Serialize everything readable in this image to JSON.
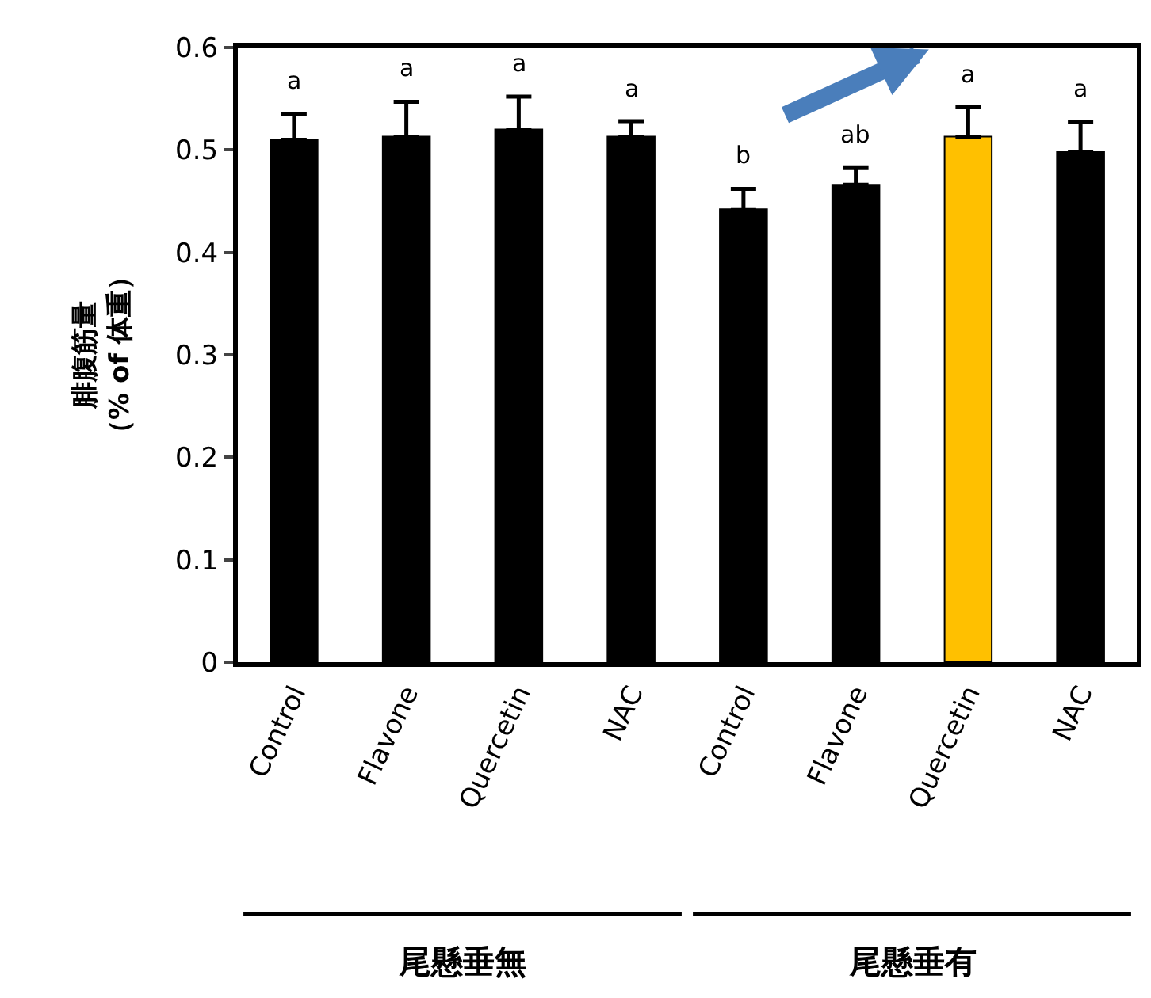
{
  "chart_data": {
    "type": "bar",
    "ylabel": "腓腹筋量（% of 体重）",
    "categories": [
      "Control",
      "Flavone",
      "Quercetin",
      "NAC",
      "Control",
      "Flavone",
      "Quercetin",
      "NAC"
    ],
    "values": [
      0.51,
      0.513,
      0.52,
      0.513,
      0.442,
      0.466,
      0.513,
      0.498
    ],
    "colors": [
      "#000000",
      "#000000",
      "#000000",
      "#000000",
      "#000000",
      "#000000",
      "#ffc000",
      "#000000"
    ],
    "errors": [
      [
        0.51,
        0.535
      ],
      [
        0.513,
        0.547
      ],
      [
        0.52,
        0.552
      ],
      [
        0.513,
        0.528
      ],
      [
        0.442,
        0.462
      ],
      [
        0.466,
        0.483
      ],
      [
        0.513,
        0.542
      ],
      [
        0.498,
        0.527
      ]
    ],
    "value_labels": [
      "a",
      "a",
      "a",
      "a",
      "b",
      "ab",
      "a",
      "a"
    ],
    "annotations": [
      "尾懸垂無",
      "尾懸垂有"
    ],
    "ylim": [
      0,
      0.6
    ],
    "yticks": [
      0,
      0.1,
      0.2,
      0.3,
      0.4,
      0.5,
      0.6
    ],
    "grid": false,
    "legend": false
  }
}
